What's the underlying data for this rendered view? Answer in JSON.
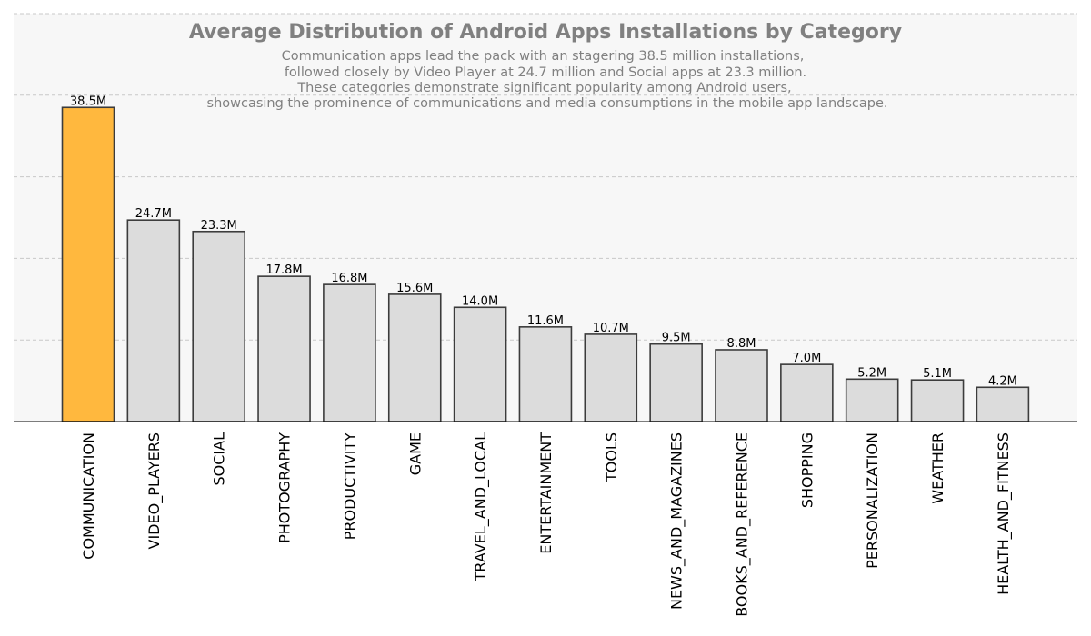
{
  "chart_data": {
    "type": "bar",
    "title": "Average Distribution of Android Apps Installations by Category",
    "subtitle_lines": [
      "Communication apps lead the pack with an stagering 38.5 million installations,",
      "followed closely by Video Player at 24.7 million and Social apps at 23.3 million.",
      "These categories demonstrate significant popularity among Android users,",
      "showcasing the prominence of communications and media consumptions in the mobile app landscape."
    ],
    "categories": [
      "COMMUNICATION",
      "VIDEO_PLAYERS",
      "SOCIAL",
      "PHOTOGRAPHY",
      "PRODUCTIVITY",
      "GAME",
      "TRAVEL_AND_LOCAL",
      "ENTERTAINMENT",
      "TOOLS",
      "NEWS_AND_MAGAZINES",
      "BOOKS_AND_REFERENCE",
      "SHOPPING",
      "PERSONALIZATION",
      "WEATHER",
      "HEALTH_AND_FITNESS"
    ],
    "values": [
      38.5,
      24.7,
      23.3,
      17.8,
      16.8,
      15.6,
      14.0,
      11.6,
      10.7,
      9.5,
      8.8,
      7.0,
      5.2,
      5.1,
      4.2
    ],
    "value_labels": [
      "38.5M",
      "24.7M",
      "23.3M",
      "17.8M",
      "16.8M",
      "15.6M",
      "14.0M",
      "11.6M",
      "10.7M",
      "9.5M",
      "8.8M",
      "7.0M",
      "5.2M",
      "5.1M",
      "4.2M"
    ],
    "unit": "million installations",
    "ylim": [
      0,
      50
    ],
    "yticks": [
      0,
      10,
      20,
      30,
      40,
      50
    ],
    "ytick_labels_visible": false,
    "grid": "y dashed",
    "legend": "none",
    "highlight_index": 0,
    "colors": {
      "highlight": "#ffb83e",
      "bar": "#dcdcdc",
      "bar_edge": "#3c3c3c",
      "background": "#f7f7f7",
      "grid": "#c8c8c8",
      "title": "#808080"
    }
  }
}
